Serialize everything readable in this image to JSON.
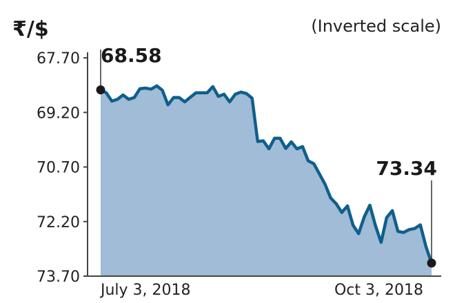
{
  "chart_data": {
    "type": "area",
    "title": "₹/$",
    "subtitle": "(Inverted scale)",
    "xlabel": "",
    "ylabel": "",
    "y_inverted": true,
    "ylim": [
      67.7,
      73.7
    ],
    "y_ticks": [
      "67.70",
      "69.20",
      "70.70",
      "72.20",
      "73.70"
    ],
    "x_tick_labels": [
      "July 3, 2018",
      "Oct 3, 2018"
    ],
    "series": [
      {
        "values": [
          68.58,
          68.66,
          68.89,
          68.84,
          68.72,
          68.84,
          68.79,
          68.55,
          68.53,
          68.56,
          68.47,
          68.59,
          68.99,
          68.79,
          68.79,
          68.91,
          68.78,
          68.66,
          68.66,
          68.66,
          68.49,
          68.76,
          68.7,
          68.91,
          68.7,
          68.64,
          68.68,
          68.81,
          70.0,
          69.98,
          70.2,
          69.91,
          69.91,
          70.19,
          70.01,
          70.2,
          70.14,
          70.53,
          70.61,
          70.89,
          71.17,
          71.55,
          71.71,
          71.95,
          71.77,
          72.3,
          72.53,
          72.07,
          71.75,
          72.31,
          72.77,
          72.09,
          71.9,
          72.47,
          72.5,
          72.42,
          72.39,
          72.29,
          72.89,
          73.34
        ]
      }
    ],
    "callouts": [
      {
        "label": "68.58",
        "value": 68.58,
        "position": "start"
      },
      {
        "label": "73.34",
        "value": 73.34,
        "position": "end"
      }
    ],
    "colors": {
      "line": "#0f5f8c",
      "fill": "#a0bcd6",
      "text": "#1a1a1a",
      "axis": "#444444"
    }
  }
}
